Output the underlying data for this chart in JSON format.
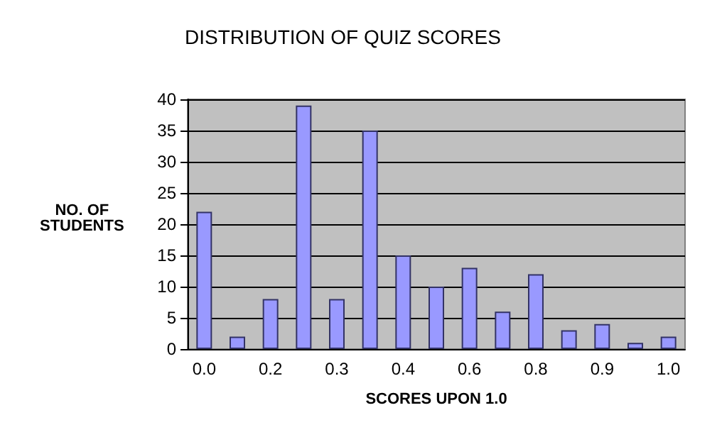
{
  "chart_data": {
    "type": "bar",
    "title": "DISTRIBUTION OF QUIZ SCORES",
    "xlabel": "SCORES UPON 1.0",
    "ylabel": "NO. OF\nSTUDENTS",
    "categories": [
      "0.0",
      null,
      "0.2",
      null,
      "0.3",
      null,
      "0.4",
      null,
      "0.6",
      null,
      "0.8",
      null,
      "0.9",
      null,
      "1.0"
    ],
    "values": [
      22,
      2,
      8,
      39,
      8,
      35,
      15,
      10,
      13,
      6,
      12,
      3,
      4,
      1,
      2
    ],
    "color": "#9999ff",
    "ylim": [
      0,
      40
    ],
    "yticks": [
      0,
      5,
      10,
      15,
      20,
      25,
      30,
      35,
      40
    ],
    "grid": "y"
  }
}
